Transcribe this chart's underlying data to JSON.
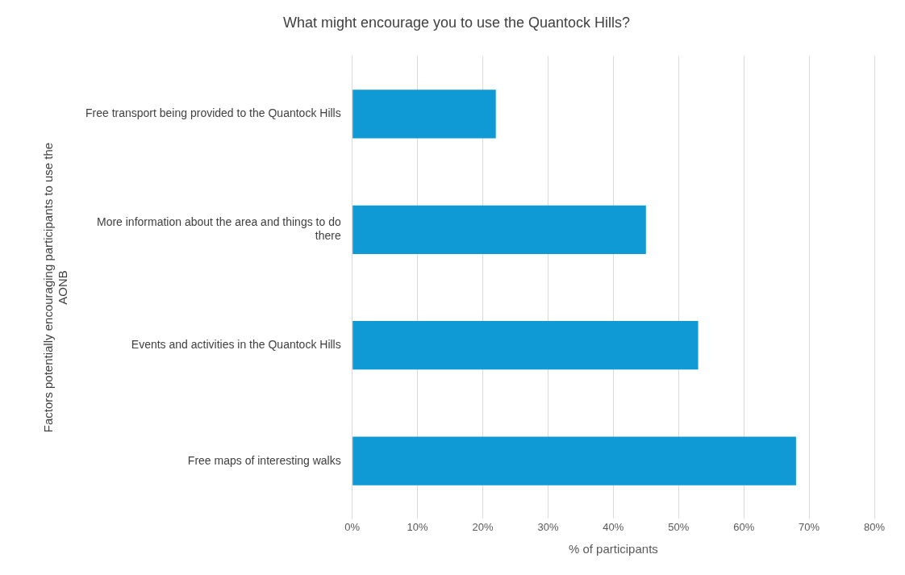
{
  "chart_data": {
    "type": "bar",
    "orientation": "horizontal",
    "title": "What might encourage you to use the Quantock Hills?",
    "xlabel": "% of participants",
    "ylabel": "Factors potentially encouraging participants to use the AONB",
    "categories": [
      "Free transport being provided to the Quantock Hills",
      "More information about the area and things to do there",
      "Events and activities in the Quantock Hills",
      "Free maps of interesting walks"
    ],
    "values": [
      22,
      45,
      53,
      68
    ],
    "color": "#0f9ad6",
    "xlim": [
      0,
      80
    ],
    "xticks": [
      {
        "value": 0,
        "label": "0%"
      },
      {
        "value": 10,
        "label": "10%"
      },
      {
        "value": 20,
        "label": "20%"
      },
      {
        "value": 30,
        "label": "30%"
      },
      {
        "value": 40,
        "label": "40%"
      },
      {
        "value": 50,
        "label": "50%"
      },
      {
        "value": 60,
        "label": "60%"
      },
      {
        "value": 70,
        "label": "70%"
      },
      {
        "value": 80,
        "label": "80%"
      }
    ],
    "grid": "x",
    "legend": false
  }
}
